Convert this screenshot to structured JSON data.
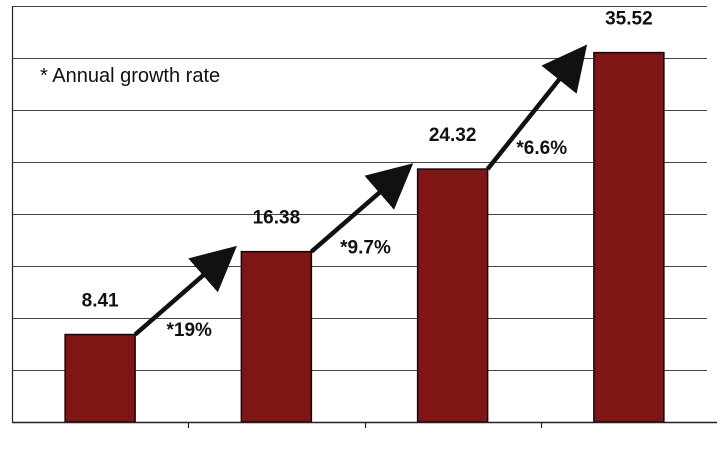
{
  "chart_data": {
    "type": "bar",
    "title": "",
    "xlabel": "",
    "ylabel": "",
    "categories": [
      "",
      "",
      "",
      ""
    ],
    "values": [
      8.41,
      16.38,
      24.32,
      35.52
    ],
    "ylim": [
      0,
      40
    ],
    "grid": true,
    "bar_color": "#7f1515",
    "annotation_note": "* Annual growth rate",
    "growth_labels": [
      "*19%",
      "*9.7%",
      "*6.6%"
    ]
  }
}
